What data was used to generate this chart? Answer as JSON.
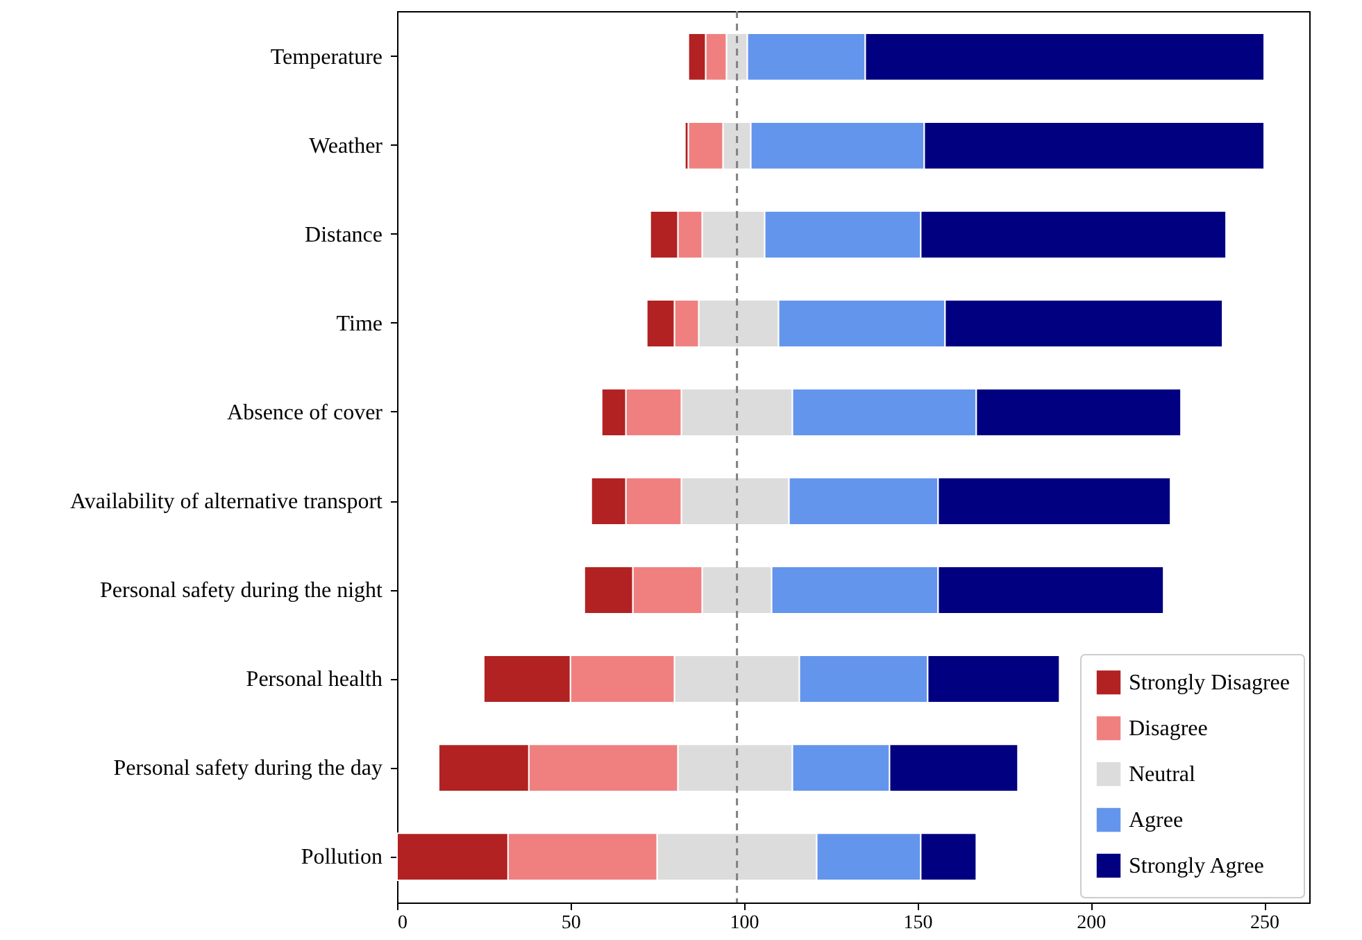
{
  "chart_data": {
    "type": "bar",
    "orientation": "horizontal",
    "categories": [
      "Temperature",
      "Weather",
      "Distance",
      "Time",
      "Absence of cover",
      "Availability of alternative transport",
      "Personal safety during the night",
      "Personal health",
      "Personal safety during the day",
      "Pollution"
    ],
    "series": [
      {
        "name": "Strongly Disagree",
        "color": "#b22222",
        "base": [
          84,
          83,
          73,
          72,
          59,
          56,
          54,
          25,
          12,
          0
        ],
        "values": [
          5,
          1,
          8,
          8,
          7,
          10,
          14,
          25,
          26,
          32
        ]
      },
      {
        "name": "Disagree",
        "color": "#f08080",
        "base": [
          89,
          84,
          81,
          80,
          66,
          66,
          68,
          50,
          38,
          32
        ],
        "values": [
          6,
          10,
          7,
          7,
          16,
          16,
          20,
          30,
          43,
          43
        ]
      },
      {
        "name": "Neutral",
        "color": "#dcdcdc",
        "base": [
          95,
          94,
          88,
          87,
          82,
          82,
          88,
          80,
          81,
          75
        ],
        "values": [
          6,
          8,
          18,
          23,
          32,
          31,
          20,
          36,
          33,
          46
        ]
      },
      {
        "name": "Agree",
        "color": "#6495ed",
        "base": [
          101,
          102,
          106,
          110,
          114,
          113,
          108,
          116,
          114,
          121
        ],
        "values": [
          34,
          50,
          45,
          48,
          53,
          43,
          48,
          37,
          28,
          30
        ]
      },
      {
        "name": "Strongly Agree",
        "color": "#000080",
        "base": [
          135,
          152,
          151,
          158,
          167,
          156,
          156,
          153,
          142,
          151
        ],
        "values": [
          115,
          98,
          88,
          80,
          59,
          67,
          65,
          38,
          37,
          16
        ]
      }
    ],
    "xlim": [
      0,
      263
    ],
    "xticks": [
      0,
      50,
      100,
      150,
      200,
      250
    ],
    "ref_lines": [
      {
        "axis": "x",
        "value": 98,
        "color": "#808080",
        "line_style": "dashed"
      }
    ],
    "legend": "bottom right",
    "grid": false
  }
}
